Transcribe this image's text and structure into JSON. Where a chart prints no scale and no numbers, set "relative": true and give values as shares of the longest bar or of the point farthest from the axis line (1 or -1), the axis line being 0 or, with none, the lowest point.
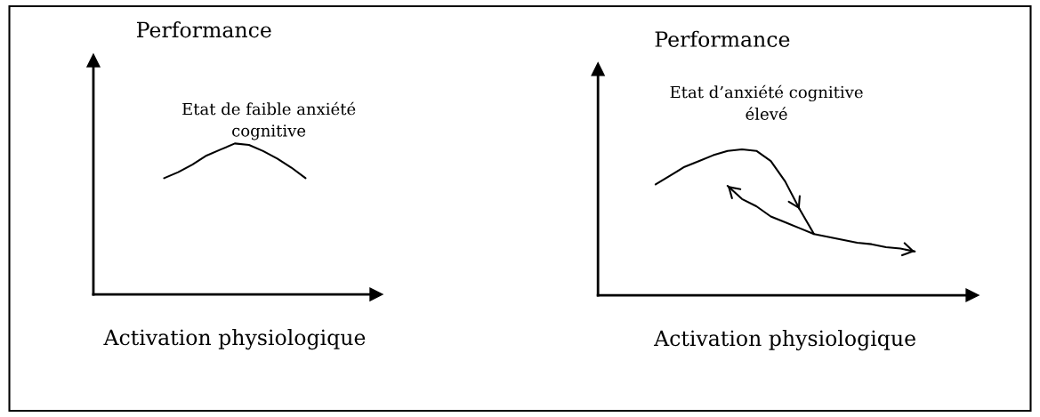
{
  "chart_data": [
    {
      "type": "line",
      "relative": true,
      "ylabel": "Performance",
      "xlabel": "Activation physiologique",
      "annotations": [
        "Etat de faible anxiété\ncognitive"
      ],
      "categories": [
        null,
        null,
        null,
        null,
        null,
        null,
        null,
        null,
        null,
        null,
        null,
        null,
        null,
        null,
        null,
        null,
        null,
        null,
        null
      ],
      "series": [
        {
          "color": "#000000",
          "values": [
            null,
            null,
            null,
            null,
            0.77,
            0.81,
            0.86,
            0.92,
            0.96,
            1,
            0.99,
            0.95,
            0.9,
            0.84,
            0.77,
            null,
            null,
            null,
            null
          ]
        }
      ],
      "tick_labels": false,
      "grid": false,
      "legend": false
    },
    {
      "type": "line",
      "relative": true,
      "ylabel": "Performance",
      "xlabel": "Activation physiologique",
      "annotations": [
        "Etat d’anxiété cognitive\nélevé"
      ],
      "categories": [
        null,
        null,
        null,
        null,
        null,
        null,
        null,
        null,
        null,
        null,
        null,
        null,
        null,
        null,
        null,
        null,
        null,
        null,
        null,
        null,
        null,
        null,
        null,
        null,
        null
      ],
      "series": [
        {
          "color": "#000000",
          "values": [
            null,
            null,
            null,
            0.76,
            0.82,
            0.88,
            0.92,
            0.96,
            0.99,
            1,
            0.99,
            0.92,
            0.78,
            0.59,
            0.42,
            0.4,
            0.38,
            0.36,
            0.35,
            0.33,
            0.32,
            0.3,
            null,
            null,
            null
          ]
        },
        {
          "color": "#000000",
          "values": [
            null,
            null,
            null,
            null,
            null,
            null,
            null,
            null,
            0.75,
            0.66,
            0.61,
            0.54,
            0.5,
            0.46,
            0.42,
            null,
            null,
            null,
            null,
            null,
            null,
            null,
            null,
            null,
            null
          ]
        }
      ],
      "tick_labels": false,
      "grid": false,
      "legend": false
    }
  ]
}
